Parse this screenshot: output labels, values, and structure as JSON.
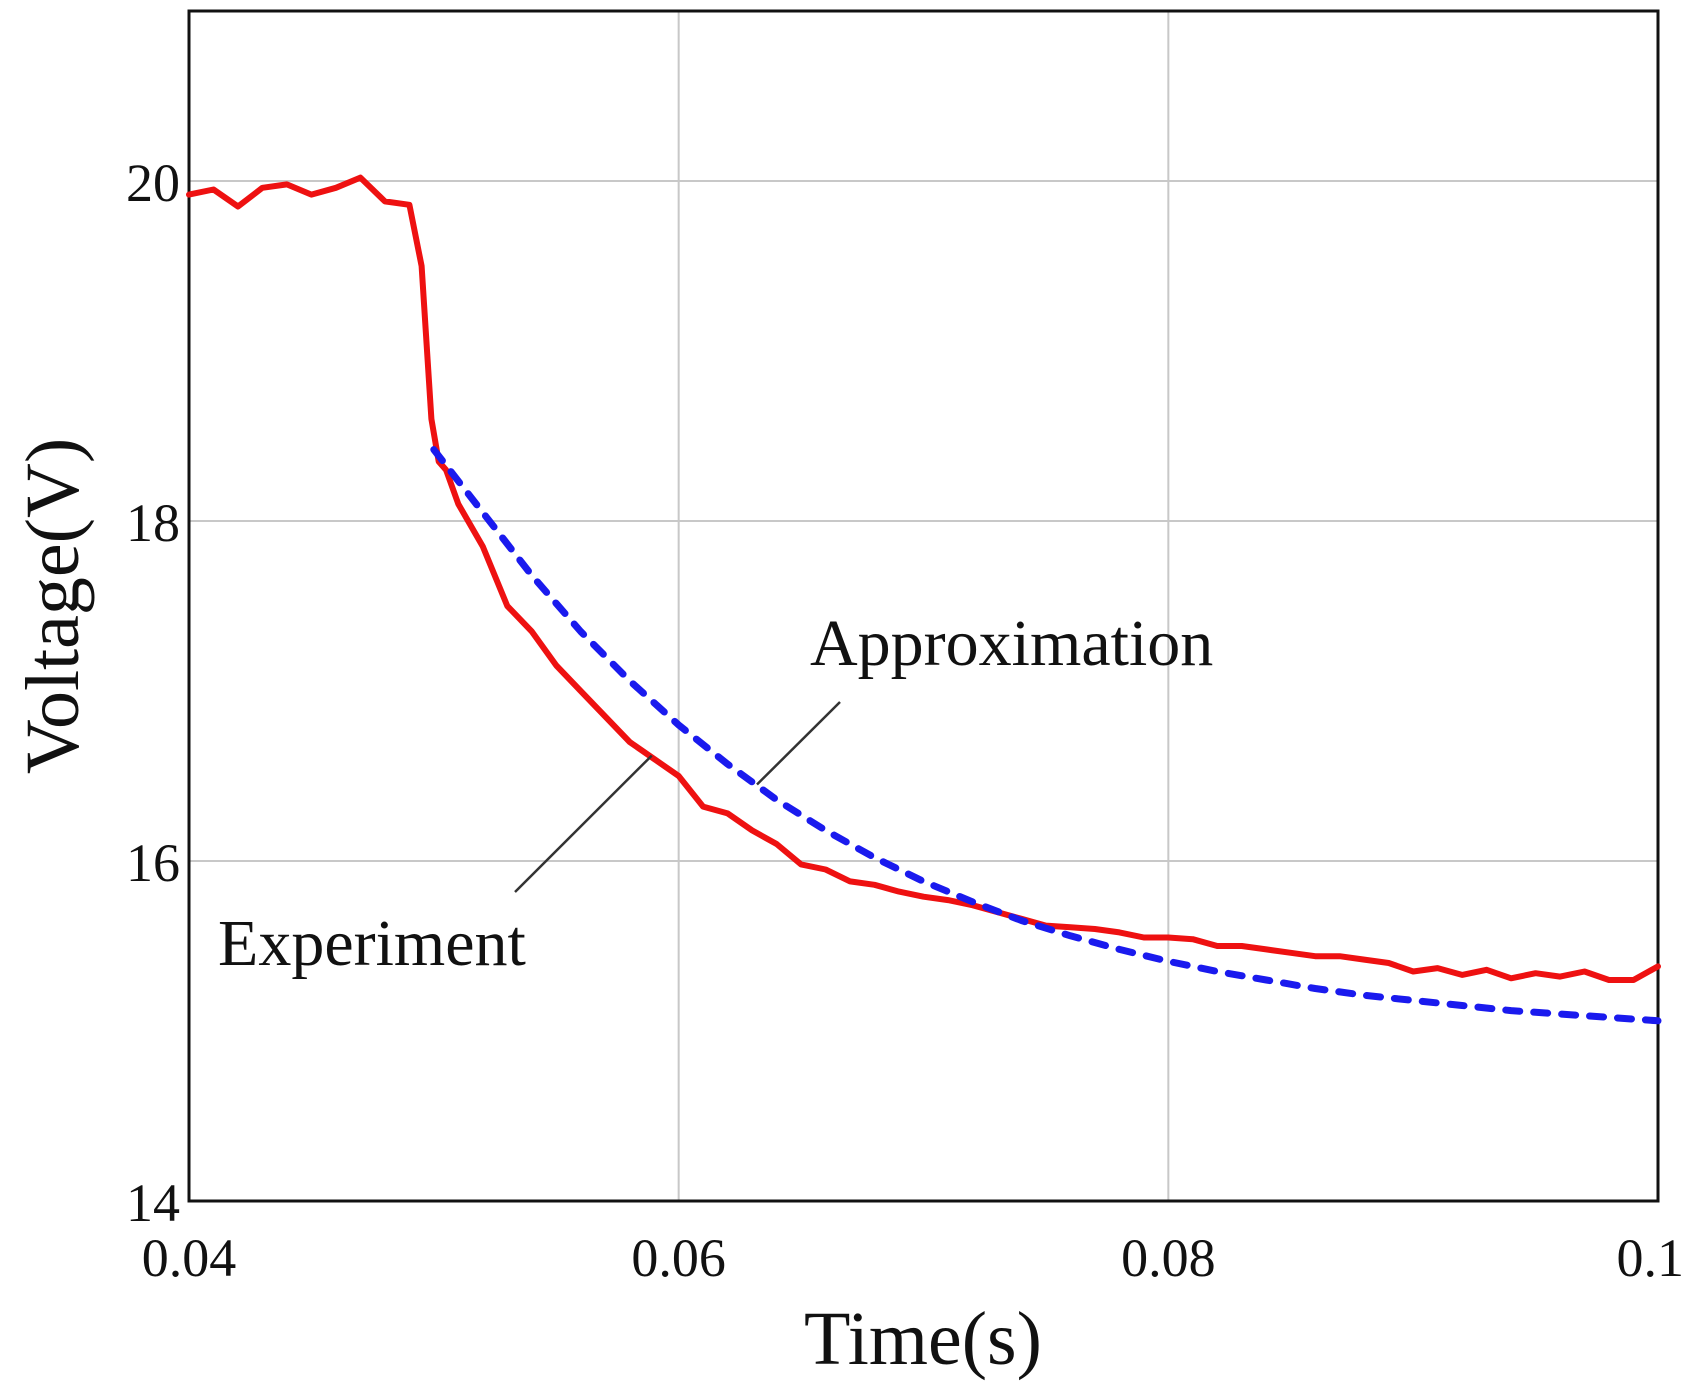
{
  "chart_data": {
    "type": "line",
    "title": "",
    "xlabel": "Time(s)",
    "ylabel": "Voltage(V)",
    "xlim": [
      0.04,
      0.1
    ],
    "ylim": [
      14,
      21
    ],
    "grid": true,
    "x_ticks": [
      {
        "value": 0.04,
        "label": "0.04"
      },
      {
        "value": 0.06,
        "label": "0.06"
      },
      {
        "value": 0.08,
        "label": "0.08"
      },
      {
        "value": 0.1,
        "label": "0.1"
      }
    ],
    "y_ticks": [
      {
        "value": 14,
        "label": "14"
      },
      {
        "value": 16,
        "label": "16"
      },
      {
        "value": 18,
        "label": "18"
      },
      {
        "value": 20,
        "label": "20"
      }
    ],
    "series": [
      {
        "name": "Experiment",
        "color": "#ee1111",
        "style": "solid",
        "x": [
          0.04,
          0.041,
          0.042,
          0.043,
          0.044,
          0.045,
          0.046,
          0.047,
          0.048,
          0.049,
          0.0495,
          0.0499,
          0.0502,
          0.0505,
          0.051,
          0.052,
          0.053,
          0.054,
          0.055,
          0.056,
          0.057,
          0.058,
          0.059,
          0.06,
          0.061,
          0.062,
          0.063,
          0.064,
          0.065,
          0.066,
          0.067,
          0.068,
          0.069,
          0.07,
          0.071,
          0.072,
          0.073,
          0.074,
          0.075,
          0.076,
          0.077,
          0.078,
          0.079,
          0.08,
          0.081,
          0.082,
          0.083,
          0.084,
          0.085,
          0.086,
          0.087,
          0.088,
          0.089,
          0.09,
          0.091,
          0.092,
          0.093,
          0.094,
          0.095,
          0.096,
          0.097,
          0.098,
          0.099,
          0.1
        ],
        "y": [
          19.92,
          19.95,
          19.85,
          19.96,
          19.98,
          19.92,
          19.96,
          20.02,
          19.88,
          19.86,
          19.5,
          18.6,
          18.35,
          18.3,
          18.1,
          17.85,
          17.5,
          17.35,
          17.15,
          17.0,
          16.85,
          16.7,
          16.6,
          16.5,
          16.32,
          16.28,
          16.18,
          16.1,
          15.98,
          15.95,
          15.88,
          15.86,
          15.82,
          15.79,
          15.77,
          15.74,
          15.7,
          15.66,
          15.62,
          15.61,
          15.6,
          15.58,
          15.55,
          15.55,
          15.54,
          15.5,
          15.5,
          15.48,
          15.46,
          15.44,
          15.44,
          15.42,
          15.4,
          15.35,
          15.37,
          15.33,
          15.36,
          15.31,
          15.34,
          15.32,
          15.35,
          15.3,
          15.3,
          15.38
        ]
      },
      {
        "name": "Approximation",
        "color": "#1a1aee",
        "style": "dashed",
        "x": [
          0.05,
          0.052,
          0.054,
          0.056,
          0.058,
          0.06,
          0.062,
          0.064,
          0.066,
          0.068,
          0.07,
          0.072,
          0.074,
          0.076,
          0.078,
          0.08,
          0.082,
          0.084,
          0.086,
          0.088,
          0.09,
          0.092,
          0.094,
          0.096,
          0.098,
          0.1
        ],
        "y": [
          18.42,
          18.05,
          17.68,
          17.35,
          17.06,
          16.8,
          16.57,
          16.36,
          16.18,
          16.02,
          15.88,
          15.76,
          15.65,
          15.56,
          15.48,
          15.41,
          15.35,
          15.3,
          15.25,
          15.21,
          15.18,
          15.15,
          15.12,
          15.1,
          15.08,
          15.06
        ]
      }
    ],
    "annotations": [
      {
        "text": "Approximation",
        "target_series": "Approximation",
        "target_x": 0.0632,
        "target_y": 16.45
      },
      {
        "text": "Experiment",
        "target_series": "Experiment",
        "target_x": 0.0589,
        "target_y": 16.62
      }
    ]
  }
}
